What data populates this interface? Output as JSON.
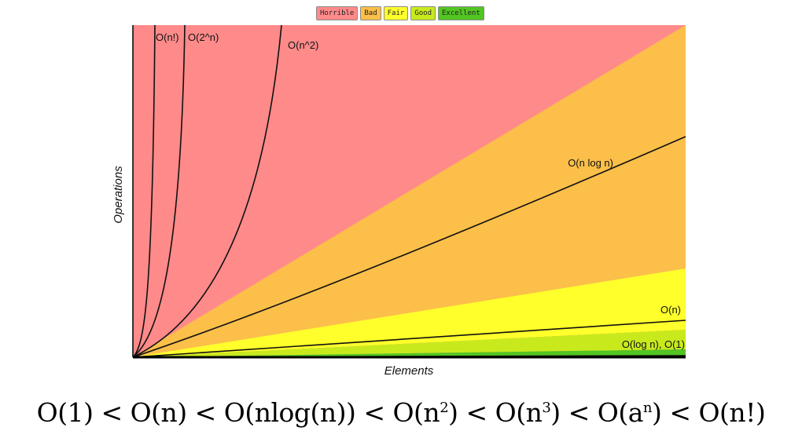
{
  "legend": [
    {
      "label": "Horrible",
      "color": "#ff8a8a"
    },
    {
      "label": "Bad",
      "color": "#fbbf4a"
    },
    {
      "label": "Fair",
      "color": "#ffff2b"
    },
    {
      "label": "Good",
      "color": "#c8ea1d"
    },
    {
      "label": "Excellent",
      "color": "#52c522"
    }
  ],
  "chart_data": {
    "type": "area",
    "title": "",
    "xlabel": "Elements",
    "ylabel": "Operations",
    "grid": false,
    "legend_position": "top-center",
    "regions": [
      {
        "name": "Horrible",
        "color": "#ff8a8a"
      },
      {
        "name": "Bad",
        "color": "#fbbf4a"
      },
      {
        "name": "Fair",
        "color": "#ffff2b"
      },
      {
        "name": "Good",
        "color": "#c8ea1d"
      },
      {
        "name": "Excellent",
        "color": "#52c522"
      }
    ],
    "series": [
      {
        "name": "O(n!)",
        "label": "O(n!)",
        "key": "factorial"
      },
      {
        "name": "O(2^n)",
        "label": "O(2^n)",
        "key": "exponential"
      },
      {
        "name": "O(n^2)",
        "label": "O(n^2)",
        "key": "quadratic"
      },
      {
        "name": "O(n log n)",
        "label": "O(n log n)",
        "key": "nlogn"
      },
      {
        "name": "O(n)",
        "label": "O(n)",
        "key": "linear"
      },
      {
        "name": "O(log n), O(1)",
        "label": "O(log n), O(1)",
        "key": "flat"
      }
    ]
  },
  "ordering": {
    "parts": [
      "O(1) < O(n) < O(nlog(n)) < O(n",
      "2",
      ") < O(n",
      "3",
      ") < O(a",
      "n",
      ") < O(n!)"
    ]
  }
}
